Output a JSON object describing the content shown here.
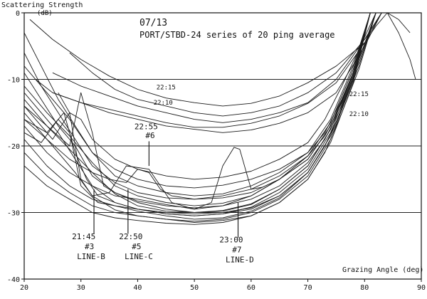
{
  "chart_data": {
    "type": "line",
    "title": "07/13",
    "subtitle": "PORT/STBD-24 series of 20 ping average",
    "ylabel": "Scattering Strength",
    "yunit": "(dB)",
    "xlabel": "Grazing Angle (deg)",
    "xlim": [
      20,
      90
    ],
    "ylim": [
      -40,
      0
    ],
    "x_ticks": [
      20,
      30,
      40,
      50,
      60,
      70,
      80,
      90
    ],
    "y_ticks": [
      0,
      -10,
      -20,
      -30,
      -40
    ],
    "grid": "horizontal",
    "legend": "none",
    "series": [
      {
        "x": [
          21,
          25,
          30,
          35,
          40,
          45,
          50,
          55,
          60,
          65,
          70,
          75,
          80,
          82,
          84,
          86,
          88
        ],
        "y": [
          -1,
          -4,
          -7,
          -9.5,
          -11.5,
          -12.8,
          -13.5,
          -14,
          -13.6,
          -12.5,
          -10.5,
          -8,
          -4.5,
          -2,
          0,
          -1,
          -3
        ]
      },
      {
        "x": [
          28,
          32,
          36,
          40,
          45,
          50,
          55,
          60,
          65,
          70,
          75,
          80,
          83
        ],
        "y": [
          -6,
          -9,
          -11.5,
          -13,
          -14,
          -15,
          -15.5,
          -15,
          -14,
          -12,
          -9,
          -4,
          0
        ]
      },
      {
        "x": [
          25,
          30,
          35,
          40,
          45,
          50,
          55,
          60,
          65,
          70,
          75,
          80,
          83
        ],
        "y": [
          -9,
          -11,
          -12.5,
          -14,
          -15,
          -16,
          -16.5,
          -16,
          -15,
          -13.5,
          -10,
          -4,
          0
        ]
      },
      {
        "x": [
          22,
          25,
          30,
          35,
          40,
          45,
          50,
          55,
          60,
          65,
          70,
          75,
          80,
          83
        ],
        "y": [
          -10,
          -12,
          -13.5,
          -14.5,
          -15.5,
          -16.5,
          -17.2,
          -17.2,
          -16.6,
          -15.5,
          -13.6,
          -10.5,
          -4.5,
          0
        ]
      },
      {
        "x": [
          25,
          30,
          35,
          40,
          45,
          50,
          55,
          60,
          65,
          70,
          75,
          80,
          83
        ],
        "y": [
          -12,
          -13.5,
          -15,
          -16,
          -17,
          -17.5,
          -18,
          -17.6,
          -16.6,
          -15,
          -12,
          -5,
          0
        ]
      },
      {
        "x": [
          20,
          23,
          26,
          29,
          32,
          36,
          40,
          45,
          50,
          55,
          60,
          65,
          70,
          73,
          76,
          79,
          82
        ],
        "y": [
          -3,
          -8,
          -13,
          -17,
          -21,
          -23.5,
          -25,
          -26,
          -26.3,
          -25.9,
          -25,
          -23.5,
          -21,
          -18,
          -13,
          -7,
          0
        ]
      },
      {
        "x": [
          20,
          23,
          26,
          29,
          32,
          36,
          40,
          45,
          50,
          55,
          60,
          65,
          70,
          73,
          76,
          79,
          82
        ],
        "y": [
          -6,
          -11,
          -15,
          -19,
          -23,
          -25.5,
          -27,
          -27.8,
          -28,
          -27.5,
          -26.5,
          -24.5,
          -21.5,
          -18.5,
          -13.5,
          -7,
          0
        ]
      },
      {
        "x": [
          20,
          23,
          26,
          29,
          32,
          36,
          40,
          45,
          50,
          55,
          60,
          65,
          70,
          73,
          76,
          79,
          82
        ],
        "y": [
          -9,
          -13,
          -17,
          -20,
          -24.5,
          -27,
          -28.3,
          -29,
          -29.3,
          -29,
          -28,
          -26,
          -22.5,
          -19,
          -14,
          -7.5,
          0
        ]
      },
      {
        "x": [
          20,
          23,
          26,
          29,
          32,
          36,
          40,
          45,
          50,
          55,
          60,
          65,
          70,
          73,
          76,
          79,
          82
        ],
        "y": [
          -12,
          -15,
          -18,
          -22,
          -26,
          -28.5,
          -29.5,
          -30.2,
          -30.5,
          -30.2,
          -29.5,
          -27.5,
          -24,
          -20,
          -14.5,
          -8,
          0
        ]
      },
      {
        "x": [
          20,
          23,
          26,
          29,
          32,
          36,
          40,
          45,
          50,
          55,
          60,
          65,
          70,
          73,
          76,
          79,
          82
        ],
        "y": [
          -15,
          -18,
          -21,
          -24,
          -27.5,
          -29.6,
          -30.5,
          -31,
          -31.5,
          -31.2,
          -30.5,
          -28.5,
          -25,
          -21,
          -15,
          -8.5,
          0
        ]
      },
      {
        "x": [
          20,
          24,
          28,
          32,
          36,
          40,
          45,
          50,
          55,
          60,
          65,
          70,
          74,
          78,
          81
        ],
        "y": [
          -8,
          -12,
          -16,
          -21,
          -24.5,
          -26,
          -27,
          -27.5,
          -27.2,
          -26,
          -24,
          -21,
          -16,
          -8,
          0
        ]
      },
      {
        "x": [
          20,
          24,
          28,
          32,
          36,
          40,
          45,
          50,
          55,
          60,
          65,
          70,
          74,
          78,
          81
        ],
        "y": [
          -11,
          -15,
          -18.5,
          -22.5,
          -26,
          -27.5,
          -28.5,
          -29,
          -28.6,
          -27.5,
          -25,
          -22,
          -17,
          -9,
          0
        ]
      },
      {
        "x": [
          20,
          24,
          28,
          32,
          36,
          40,
          45,
          50,
          55,
          60,
          65,
          70,
          74,
          78,
          81
        ],
        "y": [
          -14,
          -17,
          -20.5,
          -24,
          -27.2,
          -29,
          -29.8,
          -30,
          -29.8,
          -28.8,
          -26.5,
          -23,
          -17.5,
          -9,
          0
        ]
      },
      {
        "x": [
          20,
          24,
          27,
          29,
          31,
          33,
          36,
          40,
          45,
          50,
          55,
          60,
          65,
          70,
          74,
          78,
          81
        ],
        "y": [
          -16,
          -18,
          -15,
          -21,
          -25,
          -27.5,
          -28.5,
          -29.5,
          -30.2,
          -30.5,
          -30.2,
          -29.2,
          -27,
          -23.5,
          -18,
          -9.5,
          0
        ]
      },
      {
        "x": [
          20,
          23,
          26,
          28,
          30,
          33,
          36,
          40,
          45,
          50,
          55,
          60,
          65,
          70,
          74,
          78,
          81
        ],
        "y": [
          -18,
          -19.5,
          -16,
          -18,
          -26,
          -28.5,
          -29,
          -29.8,
          -30.5,
          -31,
          -30.8,
          -29.8,
          -27.8,
          -24,
          -18.5,
          -10,
          0
        ]
      },
      {
        "x": [
          20,
          24,
          28,
          30,
          32,
          34,
          36,
          40,
          45,
          50,
          55,
          60,
          65,
          70,
          74,
          78,
          81
        ],
        "y": [
          -13,
          -17,
          -20,
          -12,
          -18,
          -26,
          -27,
          -28.5,
          -29.5,
          -30,
          -29.7,
          -28.7,
          -26.5,
          -23,
          -17.5,
          -9,
          0
        ]
      },
      {
        "x": [
          20,
          23,
          25,
          28,
          30,
          32,
          35,
          38,
          42,
          46,
          50,
          55,
          60,
          65,
          70,
          74,
          78,
          81
        ],
        "y": [
          -14,
          -17,
          -19,
          -15,
          -25,
          -27.5,
          -27,
          -23,
          -23.5,
          -28.5,
          -29.5,
          -29,
          -27.5,
          -25,
          -21.5,
          -16.5,
          -8.5,
          0
        ]
      },
      {
        "x": [
          20,
          24,
          28,
          32,
          35,
          38,
          40,
          42,
          44,
          46,
          50,
          55,
          60,
          65,
          70,
          74,
          78,
          81
        ],
        "y": [
          -16,
          -19,
          -22,
          -24,
          -25,
          -25.5,
          -23.5,
          -24,
          -26.5,
          -27.5,
          -28,
          -27.8,
          -27,
          -25,
          -21.5,
          -16.5,
          -8.5,
          0
        ]
      },
      {
        "x": [
          20,
          24,
          28,
          32,
          36,
          40,
          45,
          50,
          53,
          55,
          57,
          58,
          60,
          62,
          65,
          70,
          74,
          78,
          81
        ],
        "y": [
          -17,
          -21,
          -24,
          -26,
          -27.5,
          -28,
          -28.8,
          -29.5,
          -28.5,
          -23,
          -20.2,
          -20.5,
          -26.5,
          -26.2,
          -25,
          -22,
          -17,
          -9,
          0
        ]
      },
      {
        "x": [
          20,
          24,
          28,
          32,
          36,
          40,
          45,
          50,
          55,
          60,
          65,
          70,
          74,
          78,
          81
        ],
        "y": [
          -19,
          -23,
          -26,
          -28,
          -29,
          -29.5,
          -30,
          -30.2,
          -30,
          -29.3,
          -27.5,
          -24,
          -18.5,
          -10,
          0
        ]
      },
      {
        "x": [
          20,
          24,
          28,
          32,
          36,
          40,
          45,
          50,
          55,
          60,
          65,
          70,
          74,
          78,
          81
        ],
        "y": [
          -21,
          -24.5,
          -27,
          -29,
          -30,
          -30.5,
          -31,
          -31.3,
          -31,
          -30,
          -28,
          -24.5,
          -19,
          -10,
          0
        ]
      },
      {
        "x": [
          20,
          24,
          28,
          32,
          36,
          40,
          45,
          50,
          55,
          60,
          65,
          70,
          74,
          78,
          81
        ],
        "y": [
          -23,
          -26,
          -28,
          -30,
          -30.8,
          -31.2,
          -31.6,
          -31.8,
          -31.5,
          -30.5,
          -28.5,
          -25,
          -19.5,
          -10.5,
          0
        ]
      },
      {
        "x": [
          26,
          28,
          30,
          32,
          36,
          40,
          45,
          50,
          55,
          60,
          65,
          70,
          73,
          76,
          79,
          82
        ],
        "y": [
          -12,
          -15,
          -16,
          -19,
          -22,
          -23.5,
          -24.5,
          -25,
          -24.7,
          -23.8,
          -22,
          -19.5,
          -16,
          -11,
          -5.5,
          0
        ]
      },
      {
        "x": [
          84,
          85,
          86,
          87,
          88,
          89
        ],
        "y": [
          0,
          -1.5,
          -3,
          -5,
          -7,
          -10
        ]
      }
    ],
    "annotations": [
      {
        "text": "22:15",
        "x": 45,
        "y": -11.5
      },
      {
        "text": "22:10",
        "x": 44.5,
        "y": -13.8
      },
      {
        "text": "22:15",
        "x": 79,
        "y": -12.5
      },
      {
        "text": "22:10",
        "x": 79,
        "y": -15.5
      },
      {
        "text": "22:55",
        "x": 41.5,
        "y": -17.5
      },
      {
        "text": "#6",
        "x": 42.2,
        "y": -18.8
      },
      {
        "text": "21:45",
        "x": 30.5,
        "y": -34
      },
      {
        "text": "#3",
        "x": 31.5,
        "y": -35.5
      },
      {
        "text": "LINE-B",
        "x": 31.8,
        "y": -37
      },
      {
        "text": "22:50",
        "x": 38.8,
        "y": -34
      },
      {
        "text": "#5",
        "x": 39.8,
        "y": -35.5
      },
      {
        "text": "LINE-C",
        "x": 40.2,
        "y": -37
      },
      {
        "text": "23:00",
        "x": 56.5,
        "y": -34.5
      },
      {
        "text": "#7",
        "x": 57.5,
        "y": -36
      },
      {
        "text": "LINE-D",
        "x": 58,
        "y": -37.5
      }
    ],
    "markers": [
      {
        "name": "marker-line-b",
        "x": 32.3,
        "y_from": -33.2,
        "y_to": -26.5
      },
      {
        "name": "marker-line-c",
        "x": 38.3,
        "y_from": -33.2,
        "y_to": -26.5
      },
      {
        "name": "marker-22-55",
        "x": 42.0,
        "y_from": -19.3,
        "y_to": -23
      },
      {
        "name": "marker-line-d",
        "x": 57.7,
        "y_from": -33.8,
        "y_to": -28.5
      }
    ]
  }
}
